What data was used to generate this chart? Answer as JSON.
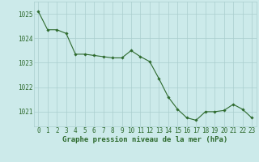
{
  "x": [
    0,
    1,
    2,
    3,
    4,
    5,
    6,
    7,
    8,
    9,
    10,
    11,
    12,
    13,
    14,
    15,
    16,
    17,
    18,
    19,
    20,
    21,
    22,
    23
  ],
  "y": [
    1025.1,
    1024.35,
    1024.35,
    1024.2,
    1023.35,
    1023.35,
    1023.3,
    1023.25,
    1023.2,
    1023.2,
    1023.5,
    1023.25,
    1023.05,
    1022.35,
    1021.6,
    1021.1,
    1020.75,
    1020.65,
    1021.0,
    1021.0,
    1021.05,
    1021.3,
    1021.1,
    1020.75
  ],
  "line_color": "#2d6a2d",
  "marker": "D",
  "marker_size": 1.8,
  "bg_color": "#cceaea",
  "grid_color": "#aacece",
  "xlabel": "Graphe pression niveau de la mer (hPa)",
  "xlabel_fontsize": 6.5,
  "tick_color": "#2d6a2d",
  "tick_fontsize": 5.5,
  "ylim": [
    1020.4,
    1025.5
  ],
  "yticks": [
    1021,
    1022,
    1023,
    1024,
    1025
  ],
  "xlim": [
    -0.5,
    23.5
  ],
  "xticks": [
    0,
    1,
    2,
    3,
    4,
    5,
    6,
    7,
    8,
    9,
    10,
    11,
    12,
    13,
    14,
    15,
    16,
    17,
    18,
    19,
    20,
    21,
    22,
    23
  ]
}
